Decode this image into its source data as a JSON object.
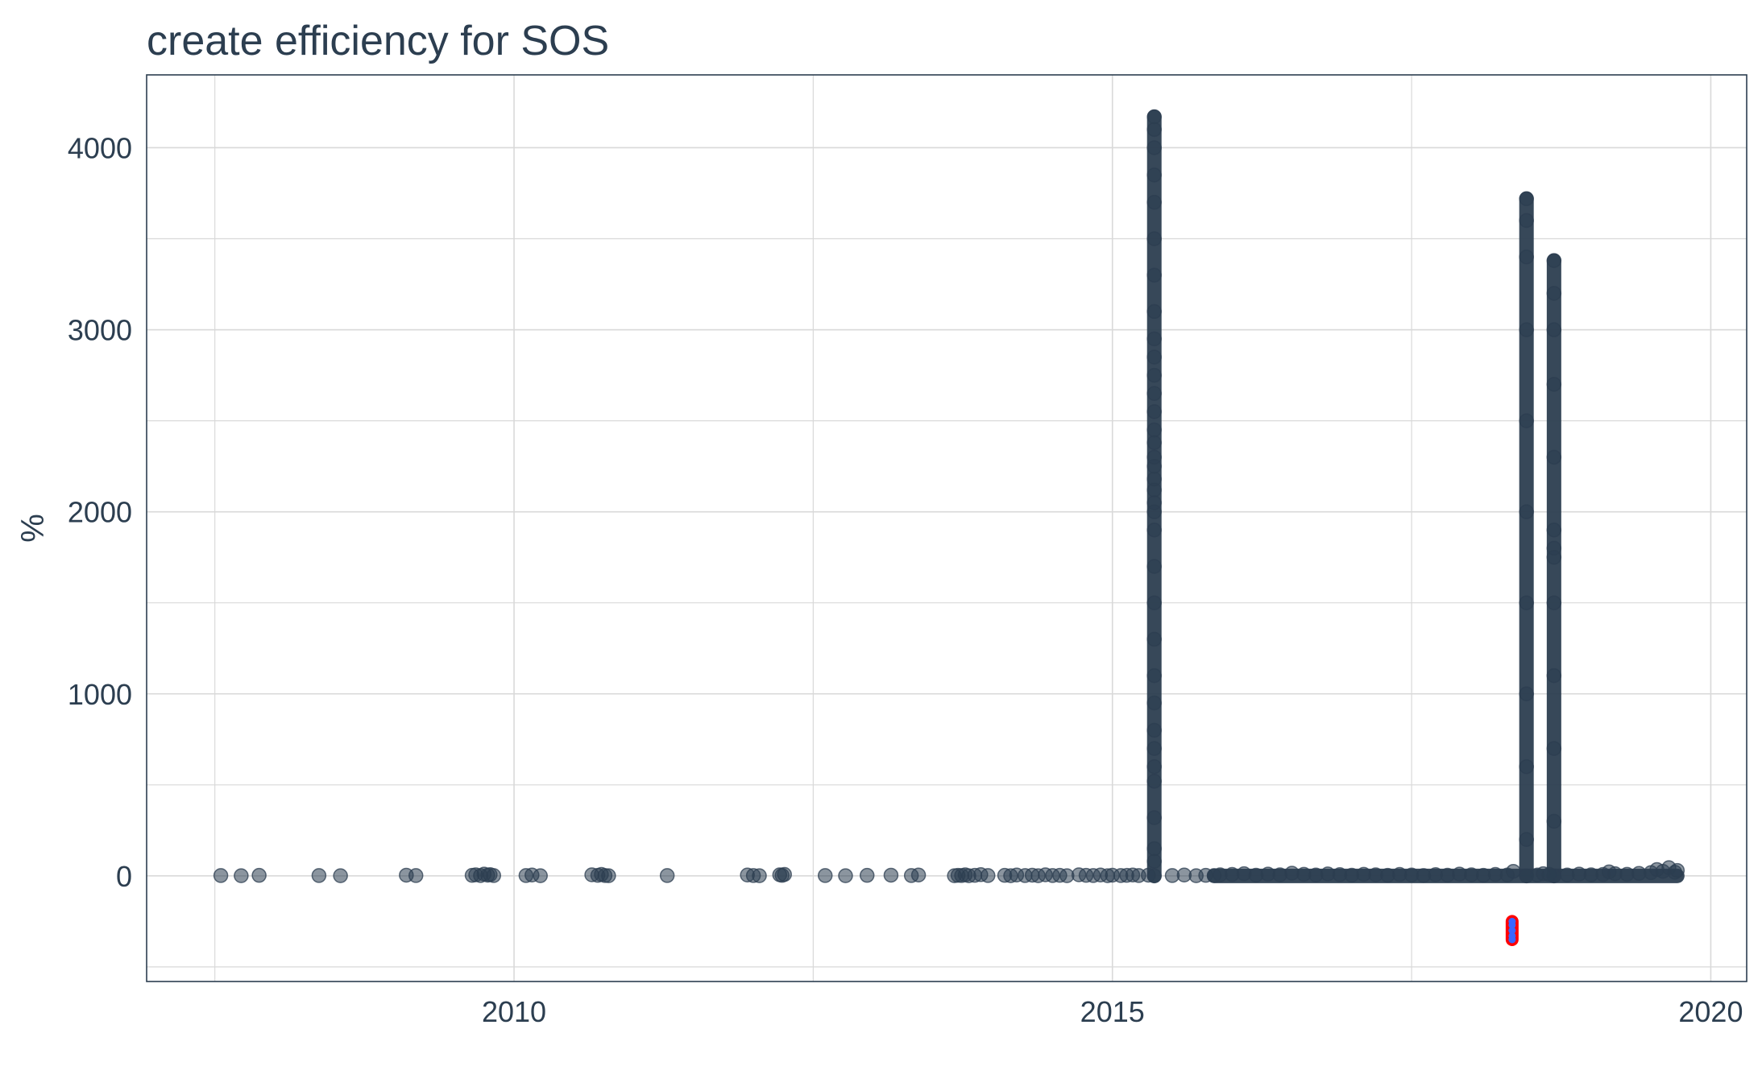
{
  "chart_data": {
    "type": "scatter",
    "title": "create efficiency for SOS",
    "xlabel": "",
    "ylabel": "%",
    "xlim": [
      2006.93,
      2020.3
    ],
    "ylim": [
      -580,
      4400
    ],
    "x_ticks": [
      2010,
      2015,
      2020
    ],
    "x_tick_labels": [
      "2010",
      "2015",
      "2020"
    ],
    "y_ticks": [
      0,
      1000,
      2000,
      3000,
      4000
    ],
    "y_tick_labels": [
      "0",
      "1000",
      "2000",
      "3000",
      "4000"
    ],
    "grid": true,
    "legend": "none",
    "colors": {
      "points": "#2c3e50",
      "highlight_outline": "#ff0000",
      "highlight_fill": "#3a66ff",
      "text": "#2c3e50",
      "grid": "#d9d9d9",
      "panel_border": "#2c3e50"
    },
    "series": [
      {
        "points": [
          [
            2007.55,
            2
          ],
          [
            2007.72,
            1
          ],
          [
            2007.87,
            3
          ],
          [
            2008.37,
            2
          ],
          [
            2008.55,
            1
          ],
          [
            2009.1,
            4
          ],
          [
            2009.18,
            2
          ],
          [
            2009.65,
            3
          ],
          [
            2009.68,
            6
          ],
          [
            2009.72,
            2
          ],
          [
            2009.75,
            10
          ],
          [
            2009.78,
            4
          ],
          [
            2009.8,
            7
          ],
          [
            2009.83,
            2
          ],
          [
            2010.1,
            2
          ],
          [
            2010.15,
            5
          ],
          [
            2010.22,
            1
          ],
          [
            2010.65,
            6
          ],
          [
            2010.7,
            3
          ],
          [
            2010.73,
            8
          ],
          [
            2010.76,
            2
          ],
          [
            2010.79,
            1
          ],
          [
            2011.28,
            2
          ],
          [
            2011.95,
            5
          ],
          [
            2012.0,
            2
          ],
          [
            2012.05,
            1
          ],
          [
            2012.22,
            6
          ],
          [
            2012.24,
            3
          ],
          [
            2012.26,
            8
          ],
          [
            2012.6,
            2
          ],
          [
            2012.77,
            1
          ],
          [
            2012.95,
            3
          ],
          [
            2013.15,
            4
          ],
          [
            2013.32,
            2
          ],
          [
            2013.38,
            5
          ],
          [
            2013.68,
            1
          ],
          [
            2013.71,
            3
          ],
          [
            2013.74,
            2
          ],
          [
            2013.77,
            6
          ],
          [
            2013.8,
            1
          ],
          [
            2013.85,
            3
          ],
          [
            2013.9,
            7
          ],
          [
            2013.96,
            2
          ],
          [
            2014.1,
            3
          ],
          [
            2014.15,
            1
          ],
          [
            2014.2,
            5
          ],
          [
            2014.27,
            2
          ],
          [
            2014.33,
            4
          ],
          [
            2014.38,
            1
          ],
          [
            2014.44,
            6
          ],
          [
            2014.5,
            2
          ],
          [
            2014.56,
            3
          ],
          [
            2014.62,
            1
          ],
          [
            2014.72,
            6
          ],
          [
            2014.78,
            3
          ],
          [
            2014.84,
            2
          ],
          [
            2014.9,
            5
          ],
          [
            2014.96,
            1
          ],
          [
            2015.0,
            4
          ],
          [
            2015.07,
            2
          ],
          [
            2015.12,
            3
          ],
          [
            2015.17,
            5
          ],
          [
            2015.22,
            2
          ],
          [
            2015.3,
            4
          ],
          [
            2015.35,
            0
          ],
          [
            2015.35,
            80
          ],
          [
            2015.35,
            150
          ],
          [
            2015.35,
            320
          ],
          [
            2015.35,
            520
          ],
          [
            2015.35,
            600
          ],
          [
            2015.35,
            700
          ],
          [
            2015.35,
            800
          ],
          [
            2015.35,
            950
          ],
          [
            2015.35,
            1100
          ],
          [
            2015.35,
            1300
          ],
          [
            2015.35,
            1500
          ],
          [
            2015.35,
            1700
          ],
          [
            2015.35,
            1900
          ],
          [
            2015.35,
            2000
          ],
          [
            2015.35,
            2050
          ],
          [
            2015.35,
            2120
          ],
          [
            2015.35,
            2180
          ],
          [
            2015.35,
            2250
          ],
          [
            2015.35,
            2300
          ],
          [
            2015.35,
            2380
          ],
          [
            2015.35,
            2450
          ],
          [
            2015.35,
            2550
          ],
          [
            2015.35,
            2650
          ],
          [
            2015.35,
            2750
          ],
          [
            2015.35,
            2850
          ],
          [
            2015.35,
            2950
          ],
          [
            2015.35,
            3100
          ],
          [
            2015.35,
            3300
          ],
          [
            2015.35,
            3500
          ],
          [
            2015.35,
            3700
          ],
          [
            2015.35,
            3850
          ],
          [
            2015.35,
            4000
          ],
          [
            2015.35,
            4100
          ],
          [
            2015.35,
            4170
          ],
          [
            2015.5,
            2
          ],
          [
            2015.6,
            5
          ],
          [
            2015.7,
            1
          ],
          [
            2015.78,
            3
          ],
          [
            2015.85,
            2
          ],
          [
            2015.9,
            6
          ],
          [
            2016.0,
            8
          ],
          [
            2016.1,
            12
          ],
          [
            2016.2,
            4
          ],
          [
            2016.3,
            10
          ],
          [
            2016.4,
            6
          ],
          [
            2016.5,
            15
          ],
          [
            2016.6,
            9
          ],
          [
            2016.7,
            5
          ],
          [
            2016.8,
            11
          ],
          [
            2016.9,
            7
          ],
          [
            2017.0,
            4
          ],
          [
            2017.1,
            9
          ],
          [
            2017.2,
            6
          ],
          [
            2017.3,
            3
          ],
          [
            2017.4,
            8
          ],
          [
            2017.5,
            5
          ],
          [
            2017.6,
            2
          ],
          [
            2017.7,
            7
          ],
          [
            2017.8,
            4
          ],
          [
            2017.9,
            10
          ],
          [
            2018.0,
            6
          ],
          [
            2018.1,
            3
          ],
          [
            2018.2,
            8
          ],
          [
            2018.3,
            5
          ],
          [
            2018.35,
            25
          ],
          [
            2018.46,
            0
          ],
          [
            2018.46,
            200
          ],
          [
            2018.46,
            600
          ],
          [
            2018.46,
            1000
          ],
          [
            2018.46,
            1500
          ],
          [
            2018.46,
            2000
          ],
          [
            2018.46,
            2500
          ],
          [
            2018.46,
            3000
          ],
          [
            2018.46,
            3400
          ],
          [
            2018.46,
            3600
          ],
          [
            2018.46,
            3720
          ],
          [
            2018.55,
            5
          ],
          [
            2018.6,
            12
          ],
          [
            2018.65,
            8
          ],
          [
            2018.69,
            0
          ],
          [
            2018.69,
            300
          ],
          [
            2018.69,
            700
          ],
          [
            2018.69,
            1100
          ],
          [
            2018.69,
            1500
          ],
          [
            2018.69,
            1750
          ],
          [
            2018.69,
            1800
          ],
          [
            2018.69,
            1900
          ],
          [
            2018.69,
            2300
          ],
          [
            2018.69,
            2700
          ],
          [
            2018.69,
            3000
          ],
          [
            2018.69,
            3200
          ],
          [
            2018.69,
            3380
          ],
          [
            2018.8,
            5
          ],
          [
            2018.9,
            10
          ],
          [
            2019.0,
            6
          ],
          [
            2019.1,
            8
          ],
          [
            2019.15,
            22
          ],
          [
            2019.2,
            12
          ],
          [
            2019.3,
            9
          ],
          [
            2019.4,
            14
          ],
          [
            2019.5,
            18
          ],
          [
            2019.55,
            35
          ],
          [
            2019.6,
            25
          ],
          [
            2019.65,
            45
          ],
          [
            2019.7,
            20
          ],
          [
            2019.72,
            30
          ]
        ]
      },
      {
        "points": [
          [
            2018.34,
            -300
          ],
          [
            2018.34,
            -270
          ],
          [
            2018.34,
            -330
          ],
          [
            2018.34,
            -250
          ],
          [
            2018.34,
            -350
          ]
        ]
      }
    ]
  }
}
